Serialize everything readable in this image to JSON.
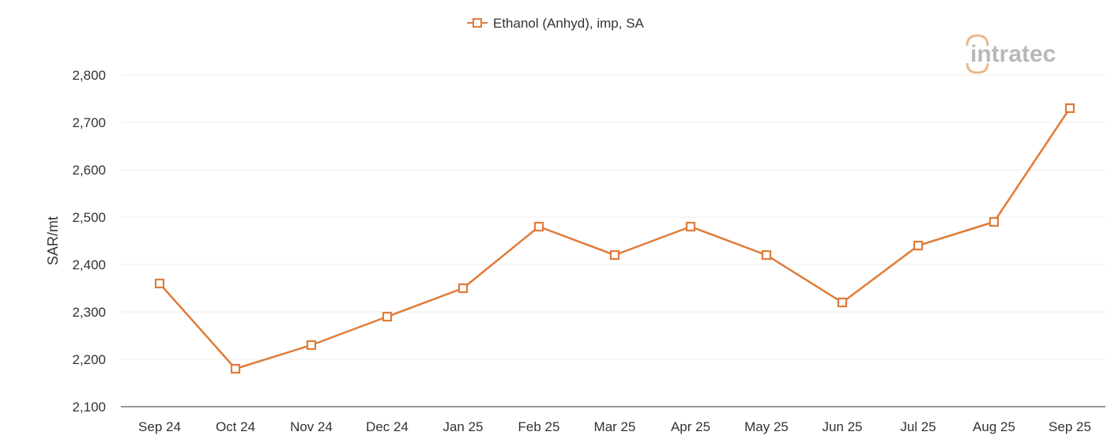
{
  "chart_data": {
    "type": "line",
    "title": "",
    "xlabel": "",
    "ylabel": "SAR/mt",
    "categories": [
      "Sep 24",
      "Oct 24",
      "Nov 24",
      "Dec 24",
      "Jan 25",
      "Feb 25",
      "Mar 25",
      "Apr 25",
      "May 25",
      "Jun 25",
      "Jul 25",
      "Aug 25",
      "Sep 25"
    ],
    "series": [
      {
        "name": "Ethanol (Anhyd), imp, SA",
        "values": [
          2360,
          2180,
          2230,
          2290,
          2350,
          2480,
          2420,
          2480,
          2420,
          2320,
          2440,
          2490,
          2730
        ],
        "color": "#e07b39",
        "marker": "open-square"
      }
    ],
    "ylim": [
      2100,
      2800
    ],
    "yticks": [
      "2,100",
      "2,200",
      "2,300",
      "2,400",
      "2,500",
      "2,600",
      "2,700",
      "2,800"
    ],
    "ytick_values": [
      2100,
      2200,
      2300,
      2400,
      2500,
      2600,
      2700,
      2800
    ],
    "grid": true,
    "legend_position": "top-center"
  },
  "logo": {
    "text": "intratec",
    "accent_color": "#e8b98e",
    "text_color": "#b8b8b8"
  }
}
